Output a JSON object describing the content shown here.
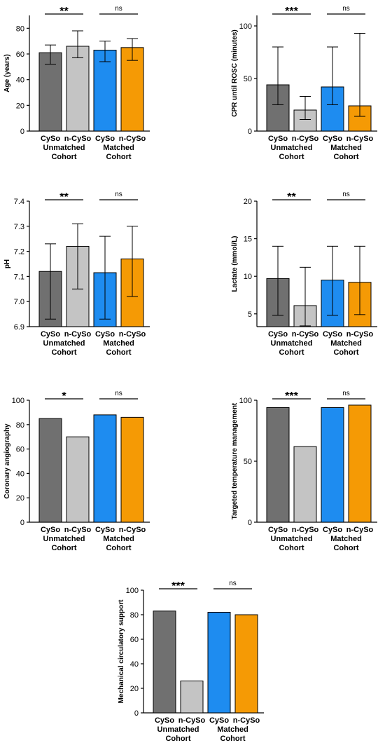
{
  "figure": {
    "colors": {
      "CySo_unmatched": "#707070",
      "n-CySo_unmatched": "#c4c4c4",
      "CySo_matched": "#1e8cf0",
      "n-CySo_matched": "#f59a05"
    }
  },
  "chart_data": [
    {
      "type": "bar",
      "ylabel": "Age (years)",
      "categories": [
        "CySo",
        "n-CySo",
        "CySo",
        "n-CySo"
      ],
      "groups": [
        "Unmatched Cohort",
        "Matched Cohort"
      ],
      "values": [
        61,
        66,
        63,
        65
      ],
      "error_low": [
        52,
        57,
        54,
        55
      ],
      "error_high": [
        67,
        78,
        70,
        72
      ],
      "ylim": [
        0,
        90
      ],
      "yticks": [
        0,
        20,
        40,
        60,
        80
      ],
      "significance": [
        {
          "between": [
            0,
            1
          ],
          "label": "**"
        },
        {
          "between": [
            2,
            3
          ],
          "label": "ns"
        }
      ]
    },
    {
      "type": "bar",
      "ylabel": "CPR until ROSC (minutes)",
      "categories": [
        "CySo",
        "n-CySo",
        "CySo",
        "n-CySo"
      ],
      "groups": [
        "Unmatched Cohort",
        "Matched Cohort"
      ],
      "values": [
        44,
        20,
        42,
        24
      ],
      "error_low": [
        25,
        11,
        25,
        14
      ],
      "error_high": [
        80,
        33,
        80,
        93
      ],
      "ylim": [
        0,
        110
      ],
      "yticks": [
        0,
        50,
        100
      ],
      "significance": [
        {
          "between": [
            0,
            1
          ],
          "label": "***"
        },
        {
          "between": [
            2,
            3
          ],
          "label": "ns"
        }
      ]
    },
    {
      "type": "bar",
      "ylabel": "pH",
      "categories": [
        "CySo",
        "n-CySo",
        "CySo",
        "n-CySo"
      ],
      "groups": [
        "Unmatched Cohort",
        "Matched Cohort"
      ],
      "values": [
        7.12,
        7.22,
        7.115,
        7.17
      ],
      "error_low": [
        6.93,
        7.05,
        6.93,
        7.02
      ],
      "error_high": [
        7.23,
        7.31,
        7.26,
        7.3
      ],
      "ylim": [
        6.9,
        7.4
      ],
      "yticks": [
        "6.9",
        "7.0",
        "7.1",
        "7.2",
        "7.3",
        "7.4"
      ],
      "significance": [
        {
          "between": [
            0,
            1
          ],
          "label": "**"
        },
        {
          "between": [
            2,
            3
          ],
          "label": "ns"
        }
      ]
    },
    {
      "type": "bar",
      "ylabel": "Lactate (mmol/L)",
      "categories": [
        "CySo",
        "n-CySo",
        "CySo",
        "n-CySo"
      ],
      "groups": [
        "Unmatched Cohort",
        "Matched Cohort"
      ],
      "values": [
        9.7,
        6.1,
        9.5,
        9.2
      ],
      "error_low": [
        4.8,
        3.4,
        4.8,
        4.9
      ],
      "error_high": [
        14,
        11.2,
        14,
        14
      ],
      "ylim": [
        3.3,
        20
      ],
      "yticks": [
        5,
        10,
        15,
        20
      ],
      "significance": [
        {
          "between": [
            0,
            1
          ],
          "label": "**"
        },
        {
          "between": [
            2,
            3
          ],
          "label": "ns"
        }
      ]
    },
    {
      "type": "bar",
      "ylabel": "Coronary angiography",
      "categories": [
        "CySo",
        "n-CySo",
        "CySo",
        "n-CySo"
      ],
      "groups": [
        "Unmatched Cohort",
        "Matched Cohort"
      ],
      "values": [
        85,
        70,
        88,
        86
      ],
      "ylim": [
        0,
        100
      ],
      "yticks": [
        0,
        20,
        40,
        60,
        80,
        100
      ],
      "significance": [
        {
          "between": [
            0,
            1
          ],
          "label": "*"
        },
        {
          "between": [
            2,
            3
          ],
          "label": "ns"
        }
      ]
    },
    {
      "type": "bar",
      "ylabel": "Targeted temperature management",
      "categories": [
        "CySo",
        "n-CySo",
        "CySo",
        "n-CySo"
      ],
      "groups": [
        "Unmatched Cohort",
        "Matched Cohort"
      ],
      "values": [
        94,
        62,
        94,
        96
      ],
      "ylim": [
        0,
        100
      ],
      "yticks": [
        0,
        50,
        100
      ],
      "significance": [
        {
          "between": [
            0,
            1
          ],
          "label": "***"
        },
        {
          "between": [
            2,
            3
          ],
          "label": "ns"
        }
      ]
    },
    {
      "type": "bar",
      "ylabel": "Mechanical circulatory support",
      "categories": [
        "CySo",
        "n-CySo",
        "CySo",
        "n-CySo"
      ],
      "groups": [
        "Unmatched Cohort",
        "Matched Cohort"
      ],
      "values": [
        83,
        26,
        82,
        80
      ],
      "ylim": [
        0,
        100
      ],
      "yticks": [
        0,
        20,
        40,
        60,
        80,
        100
      ],
      "significance": [
        {
          "between": [
            0,
            1
          ],
          "label": "***"
        },
        {
          "between": [
            2,
            3
          ],
          "label": "ns"
        }
      ]
    }
  ]
}
